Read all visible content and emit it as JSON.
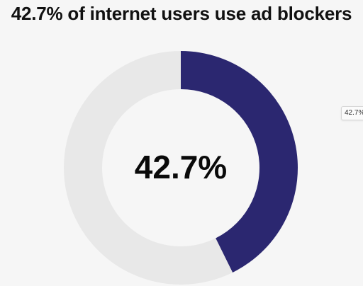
{
  "title": "42.7% of internet users use ad blockers",
  "center_label": "42.7%",
  "tooltip": "42.7%",
  "colors": {
    "filled": "#2b2770",
    "remainder": "#e8e8e8",
    "center_text": "#0a0a0a"
  },
  "chart_data": {
    "type": "pie",
    "donut": true,
    "title": "42.7% of internet users use ad blockers",
    "slices": [
      {
        "label": "",
        "value": 42.7,
        "color": "#2b2770"
      },
      {
        "label": "",
        "value": 57.3,
        "color": "#e8e8e8"
      }
    ],
    "center_text": "42.7%",
    "legend": "none"
  }
}
